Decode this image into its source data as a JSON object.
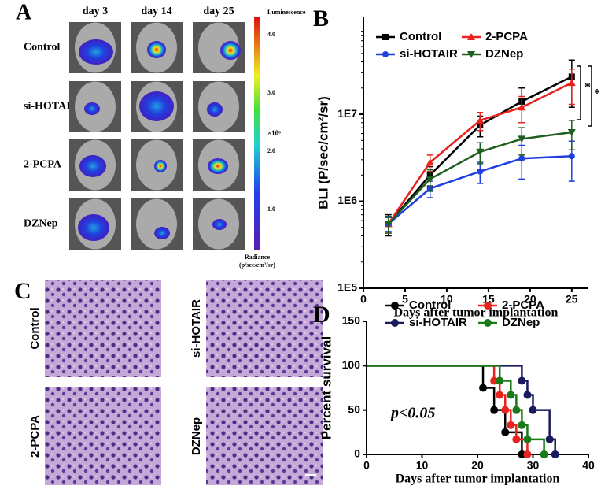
{
  "panel_a": {
    "label": "A",
    "columns": [
      "day 3",
      "day 14",
      "day 25"
    ],
    "rows": [
      "Control",
      "si-HOTAIR",
      "2-PCPA",
      "DZNep"
    ],
    "colorbar": {
      "title": "Luminescence",
      "ticks": [
        "4.0",
        "3.0",
        "2.0",
        "1.0"
      ],
      "multiplier": "×10⁶",
      "unit_label": "Radiance",
      "unit": "(p/sec/cm²/sr)"
    }
  },
  "panel_c": {
    "label": "C",
    "images": [
      "Control",
      "si-HOTAIR",
      "2-PCPA",
      "DZNep"
    ]
  },
  "chart_data": [
    {
      "type": "line",
      "panel_label": "B",
      "log_y": true,
      "x_label": "Days after tumor implantation",
      "y_label": "BLI (P/sec/cm²/sr)",
      "x": [
        3,
        8,
        14,
        19,
        25
      ],
      "xlim": [
        0,
        27
      ],
      "xticks": [
        0,
        5,
        10,
        15,
        20,
        25
      ],
      "ylim": [
        100000,
        130000000
      ],
      "yticks": [
        {
          "value": 100000,
          "label": "1E5"
        },
        {
          "value": 1000000,
          "label": "1E6"
        },
        {
          "value": 10000000,
          "label": "1E7"
        }
      ],
      "series": [
        {
          "name": "Control",
          "color": "#000000",
          "marker": "square",
          "values": [
            550000,
            2000000,
            7500000,
            14000000,
            27000000
          ],
          "errors": [
            150000,
            500000,
            2000000,
            6000000,
            15000000
          ]
        },
        {
          "name": "2-PCPA",
          "color": "#e8231f",
          "marker": "triangle-up",
          "values": [
            550000,
            2800000,
            8500000,
            12000000,
            23000000
          ],
          "errors": [
            120000,
            600000,
            2000000,
            4000000,
            10000000
          ]
        },
        {
          "name": "si-HOTAIR",
          "color": "#1f3fe0",
          "marker": "circle",
          "values": [
            550000,
            1400000,
            2200000,
            3100000,
            3300000
          ],
          "errors": [
            100000,
            300000,
            600000,
            1300000,
            1600000
          ]
        },
        {
          "name": "DZNep",
          "color": "#1f5e1f",
          "marker": "triangle-down",
          "values": [
            550000,
            1800000,
            3700000,
            5200000,
            6200000
          ],
          "errors": [
            120000,
            500000,
            1000000,
            1800000,
            2300000
          ]
        }
      ],
      "annotations": [
        "*",
        "*"
      ]
    },
    {
      "type": "step",
      "panel_label": "D",
      "x_label": "Days after tumor implantation",
      "y_label": "Percent survival",
      "xlim": [
        0,
        40
      ],
      "xticks": [
        0,
        10,
        20,
        30,
        40
      ],
      "ylim": [
        0,
        150
      ],
      "yticks": [
        0,
        50,
        100,
        150
      ],
      "series": [
        {
          "name": "Control",
          "color": "#000000",
          "x": [
            0,
            21,
            23,
            25,
            28
          ],
          "values": [
            100,
            75,
            50,
            25,
            0
          ]
        },
        {
          "name": "2-PCPA",
          "color": "#e8231f",
          "x": [
            0,
            23,
            24,
            25,
            26,
            27,
            29
          ],
          "values": [
            100,
            83,
            67,
            50,
            33,
            17,
            0
          ]
        },
        {
          "name": "si-HOTAIR",
          "color": "#1a1a5e",
          "x": [
            0,
            28,
            29,
            30,
            33,
            34
          ],
          "values": [
            100,
            83,
            67,
            50,
            17,
            0
          ]
        },
        {
          "name": "DZNep",
          "color": "#1a7a1a",
          "x": [
            0,
            24,
            26,
            27,
            28,
            29,
            32
          ],
          "values": [
            100,
            83,
            67,
            50,
            33,
            17,
            0
          ]
        }
      ],
      "annotation": "p<0.05"
    }
  ]
}
